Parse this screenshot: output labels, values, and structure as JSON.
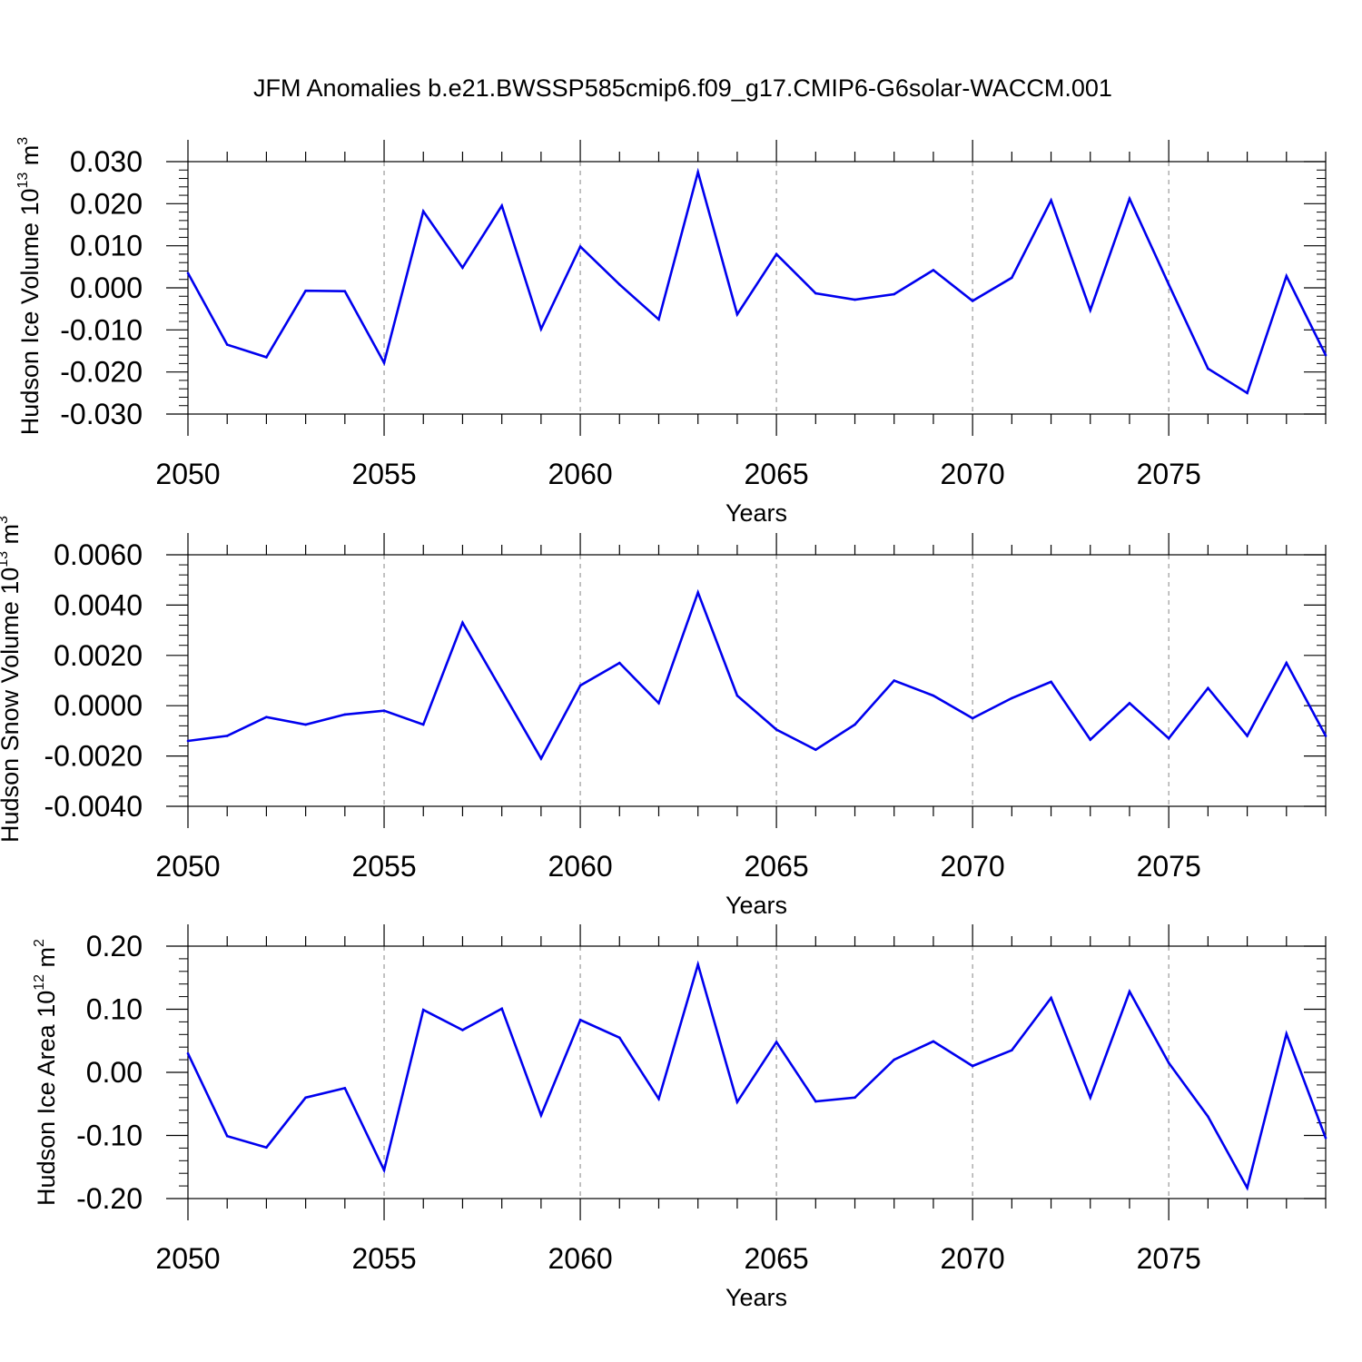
{
  "chart_data": [
    {
      "type": "line",
      "title": "JFM Anomalies b.e21.BWSSP585cmip6.f09_g17.CMIP6-G6solar-WACCM.001",
      "xlabel": "Years",
      "ylabel": {
        "text": "Hudson Ice Volume 10",
        "exp": "13",
        "unit": " m",
        "unit_exp": "3"
      },
      "xlim": [
        2050,
        2079
      ],
      "ylim": [
        -0.03,
        0.03
      ],
      "ytick_values": [
        -0.03,
        -0.02,
        -0.01,
        0,
        0.01,
        0.02,
        0.03
      ],
      "yticks": [
        "-0.030",
        "-0.020",
        "-0.010",
        "0.000",
        "0.010",
        "0.020",
        "0.030"
      ],
      "xticks": [
        "2050",
        "2055",
        "2060",
        "2065",
        "2070",
        "2075"
      ],
      "line_color": "#0000ee",
      "x": [
        2050,
        2051,
        2052,
        2053,
        2054,
        2055,
        2056,
        2057,
        2058,
        2059,
        2060,
        2061,
        2062,
        2063,
        2064,
        2065,
        2066,
        2067,
        2068,
        2069,
        2070,
        2071,
        2072,
        2073,
        2074,
        2075,
        2076,
        2077,
        2078,
        2079
      ],
      "values": [
        0.0035,
        -0.0135,
        -0.0165,
        -0.0007,
        -0.0008,
        -0.0178,
        0.0182,
        0.0048,
        0.0195,
        -0.0098,
        0.0098,
        0.0008,
        -0.0075,
        0.0275,
        -0.0063,
        0.008,
        -0.0013,
        -0.0028,
        -0.0015,
        0.0042,
        -0.0031,
        0.0024,
        0.0208,
        -0.0053,
        0.0212,
        0.0008,
        -0.0192,
        -0.025,
        0.0028,
        -0.016
      ]
    },
    {
      "type": "line",
      "title": "",
      "xlabel": "Years",
      "ylabel": {
        "text": "Hudson Snow Volume 10",
        "exp": "13",
        "unit": " m",
        "unit_exp": "3"
      },
      "xlim": [
        2050,
        2079
      ],
      "ylim": [
        -0.004,
        0.006
      ],
      "ytick_values": [
        -0.004,
        -0.002,
        0,
        0.002,
        0.004,
        0.006
      ],
      "yticks": [
        "-0.0040",
        "-0.0020",
        "0.0000",
        "0.0020",
        "0.0040",
        "0.0060"
      ],
      "xticks": [
        "2050",
        "2055",
        "2060",
        "2065",
        "2070",
        "2075"
      ],
      "line_color": "#0000ee",
      "x": [
        2050,
        2051,
        2052,
        2053,
        2054,
        2055,
        2056,
        2057,
        2058,
        2059,
        2060,
        2061,
        2062,
        2063,
        2064,
        2065,
        2066,
        2067,
        2068,
        2069,
        2070,
        2071,
        2072,
        2073,
        2074,
        2075,
        2076,
        2077,
        2078,
        2079
      ],
      "values": [
        -0.0014,
        -0.0012,
        -0.00045,
        -0.00075,
        -0.00035,
        -0.0002,
        -0.00075,
        0.0033,
        0.0006,
        -0.0021,
        0.0008,
        0.0017,
        0.0001,
        0.0045,
        0.0004,
        -0.00095,
        -0.00175,
        -0.00075,
        0.001,
        0.0004,
        -0.0005,
        0.0003,
        0.00095,
        -0.00135,
        0.0001,
        -0.0013,
        0.0007,
        -0.0012,
        0.0017,
        -0.0012
      ]
    },
    {
      "type": "line",
      "title": "",
      "xlabel": "Years",
      "ylabel": {
        "text": "Hudson Ice Area 10",
        "exp": "12",
        "unit": " m",
        "unit_exp": "2"
      },
      "xlim": [
        2050,
        2079
      ],
      "ylim": [
        -0.2,
        0.2
      ],
      "ytick_values": [
        -0.2,
        -0.1,
        0,
        0.1,
        0.2
      ],
      "yticks": [
        "-0.20",
        "-0.10",
        "0.00",
        "0.10",
        "0.20"
      ],
      "xticks": [
        "2050",
        "2055",
        "2060",
        "2065",
        "2070",
        "2075"
      ],
      "line_color": "#0000ee",
      "x": [
        2050,
        2051,
        2052,
        2053,
        2054,
        2055,
        2056,
        2057,
        2058,
        2059,
        2060,
        2061,
        2062,
        2063,
        2064,
        2065,
        2066,
        2067,
        2068,
        2069,
        2070,
        2071,
        2072,
        2073,
        2074,
        2075,
        2076,
        2077,
        2078,
        2079
      ],
      "values": [
        0.03,
        -0.101,
        -0.119,
        -0.04,
        -0.025,
        -0.155,
        0.099,
        0.067,
        0.101,
        -0.068,
        0.083,
        0.055,
        -0.042,
        0.171,
        -0.047,
        0.048,
        -0.046,
        -0.04,
        0.02,
        0.049,
        0.01,
        0.035,
        0.118,
        -0.04,
        0.128,
        0.015,
        -0.07,
        -0.183,
        0.061,
        -0.104
      ]
    }
  ]
}
